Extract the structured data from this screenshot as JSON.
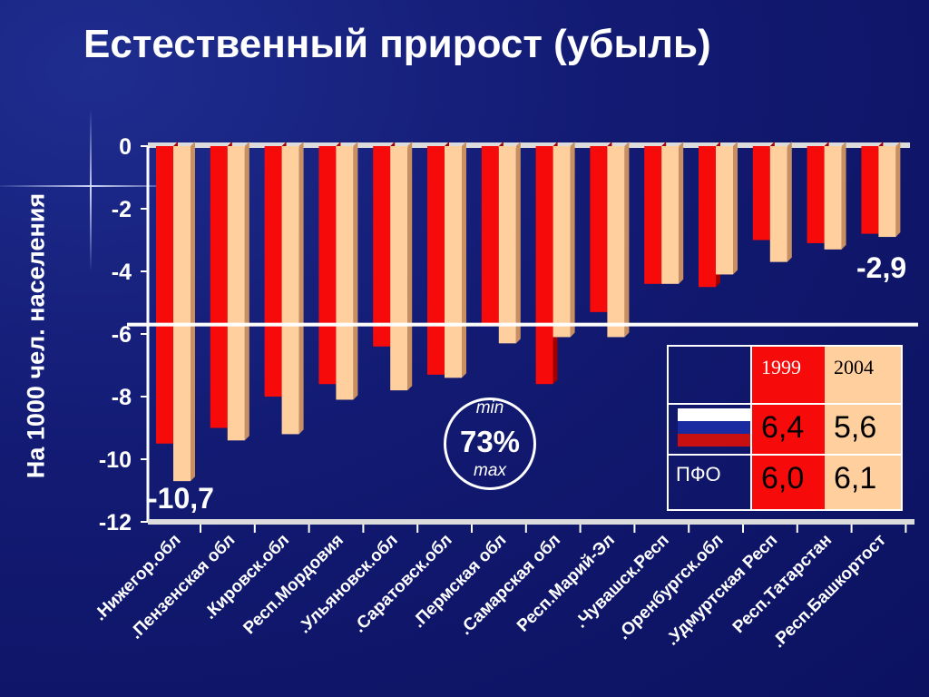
{
  "title": "Естественный прирост (убыль)",
  "chart_data": {
    "type": "bar",
    "ylabel": "На 1000 чел. населения",
    "ylim": [
      -12,
      0
    ],
    "yticks": [
      0,
      -2,
      -4,
      -6,
      -8,
      -10,
      -12
    ],
    "categories": [
      ".Нижегор.обл",
      ".Пензенская обл",
      ".Кировск.обл",
      "Респ.Мордовия",
      ".Ульяновск.обл",
      ".Саратовск.обл",
      ".Пермская обл",
      ".Самарская обл",
      "Респ.Марий-Эл",
      ".Чувашск.Респ",
      ".Оренбургск.обл",
      ".Удмуртская Респ",
      "Респ.Татарстан",
      ".Респ.Башкортост"
    ],
    "series": [
      {
        "name": "1999",
        "color": "#f70a0a",
        "values": [
          -9.5,
          -9.0,
          -8.0,
          -7.6,
          -6.4,
          -7.3,
          -5.7,
          -7.6,
          -5.3,
          -4.4,
          -4.5,
          -3.0,
          -3.1,
          -2.8
        ]
      },
      {
        "name": "2004",
        "color": "#ffcf9e",
        "values": [
          -10.7,
          -9.4,
          -9.2,
          -8.1,
          -7.8,
          -7.4,
          -6.3,
          -6.1,
          -6.1,
          -4.4,
          -4.1,
          -3.7,
          -3.3,
          -2.9
        ]
      }
    ],
    "reference_line": -5.7,
    "annotations": {
      "min_label": "-10,7",
      "max_label": "-2,9"
    }
  },
  "circle": {
    "min": "min",
    "percent": "73%",
    "max": "max"
  },
  "table": {
    "col1": "1999",
    "col2": "2004",
    "rows": [
      {
        "label": "",
        "flag": "russia-flag-icon",
        "v1999": "6,4",
        "v2004": "5,6"
      },
      {
        "label": "ПФО",
        "v1999": "6,0",
        "v2004": "6,1"
      }
    ]
  }
}
